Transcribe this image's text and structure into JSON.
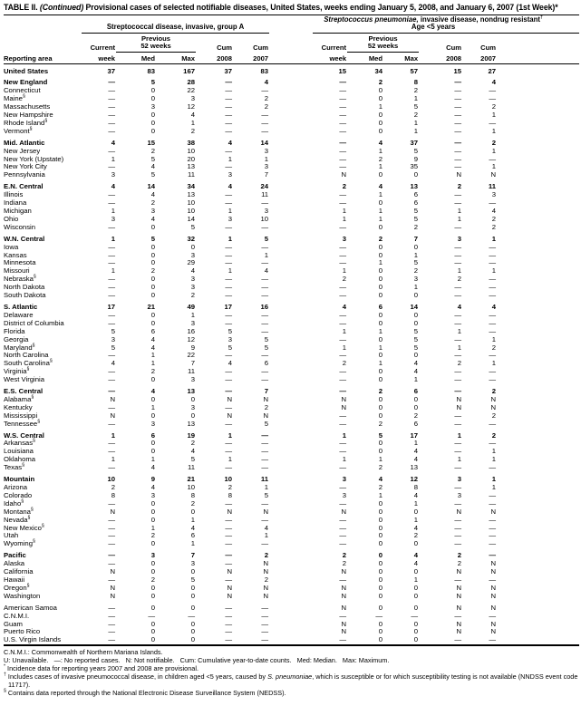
{
  "title": {
    "label": "TABLE II.",
    "continued": "(Continued)",
    "text": "Provisional cases of selected notifiable diseases, United States, weeks ending January 5, 2008, and January 6, 2007 (1st Week)*"
  },
  "header": {
    "reporting_area": "Reporting area",
    "group_a": "Streptococcal disease, invasive, group A",
    "group_b_italic": "Streptococcus pneumoniae,",
    "group_b_rest": " invasive disease, nondrug resistant",
    "group_b_mark": "†",
    "group_b_line2": "Age <5 years",
    "sub": {
      "current": "Current",
      "week": "week",
      "previous": "Previous",
      "weeks52": "52 weeks",
      "med": "Med",
      "max": "Max",
      "cum": "Cum",
      "y2008": "2008",
      "y2007": "2007"
    }
  },
  "table": {
    "rows": [
      {
        "a": "United States",
        "b": true,
        "s": true,
        "v": [
          "37",
          "83",
          "167",
          "37",
          "83",
          "15",
          "34",
          "57",
          "15",
          "27"
        ]
      },
      {
        "a": "New England",
        "b": true,
        "s": true,
        "v": [
          "—",
          "5",
          "28",
          "—",
          "4",
          "—",
          "2",
          "8",
          "—",
          "4"
        ]
      },
      {
        "a": "Connecticut",
        "v": [
          "—",
          "0",
          "22",
          "—",
          "—",
          "—",
          "0",
          "2",
          "—",
          "—"
        ]
      },
      {
        "a": "Maine",
        "m": "§",
        "v": [
          "—",
          "0",
          "3",
          "—",
          "2",
          "—",
          "0",
          "1",
          "—",
          "—"
        ]
      },
      {
        "a": "Massachusetts",
        "v": [
          "—",
          "3",
          "12",
          "—",
          "2",
          "—",
          "1",
          "5",
          "—",
          "2"
        ]
      },
      {
        "a": "New Hampshire",
        "v": [
          "—",
          "0",
          "4",
          "—",
          "—",
          "—",
          "0",
          "2",
          "—",
          "1"
        ]
      },
      {
        "a": "Rhode Island",
        "m": "§",
        "v": [
          "—",
          "0",
          "1",
          "—",
          "—",
          "—",
          "0",
          "1",
          "—",
          "—"
        ]
      },
      {
        "a": "Vermont",
        "m": "§",
        "v": [
          "—",
          "0",
          "2",
          "—",
          "—",
          "—",
          "0",
          "1",
          "—",
          "1"
        ]
      },
      {
        "a": "Mid. Atlantic",
        "b": true,
        "s": true,
        "v": [
          "4",
          "15",
          "38",
          "4",
          "14",
          "—",
          "4",
          "37",
          "—",
          "2"
        ]
      },
      {
        "a": "New Jersey",
        "v": [
          "—",
          "2",
          "10",
          "—",
          "3",
          "—",
          "1",
          "5",
          "—",
          "1"
        ]
      },
      {
        "a": "New York (Upstate)",
        "v": [
          "1",
          "5",
          "20",
          "1",
          "1",
          "—",
          "2",
          "9",
          "—",
          "—"
        ]
      },
      {
        "a": "New York City",
        "v": [
          "—",
          "4",
          "13",
          "—",
          "3",
          "—",
          "1",
          "35",
          "—",
          "1"
        ]
      },
      {
        "a": "Pennsylvania",
        "v": [
          "3",
          "5",
          "11",
          "3",
          "7",
          "N",
          "0",
          "0",
          "N",
          "N"
        ]
      },
      {
        "a": "E.N. Central",
        "b": true,
        "s": true,
        "v": [
          "4",
          "14",
          "34",
          "4",
          "24",
          "2",
          "4",
          "13",
          "2",
          "11"
        ]
      },
      {
        "a": "Illinois",
        "v": [
          "—",
          "4",
          "13",
          "—",
          "11",
          "—",
          "1",
          "6",
          "—",
          "3"
        ]
      },
      {
        "a": "Indiana",
        "v": [
          "—",
          "2",
          "10",
          "—",
          "—",
          "—",
          "0",
          "6",
          "—",
          "—"
        ]
      },
      {
        "a": "Michigan",
        "v": [
          "1",
          "3",
          "10",
          "1",
          "3",
          "1",
          "1",
          "5",
          "1",
          "4"
        ]
      },
      {
        "a": "Ohio",
        "v": [
          "3",
          "4",
          "14",
          "3",
          "10",
          "1",
          "1",
          "5",
          "1",
          "2"
        ]
      },
      {
        "a": "Wisconsin",
        "v": [
          "—",
          "0",
          "5",
          "—",
          "—",
          "—",
          "0",
          "2",
          "—",
          "2"
        ]
      },
      {
        "a": "W.N. Central",
        "b": true,
        "s": true,
        "v": [
          "1",
          "5",
          "32",
          "1",
          "5",
          "3",
          "2",
          "7",
          "3",
          "1"
        ]
      },
      {
        "a": "Iowa",
        "v": [
          "—",
          "0",
          "0",
          "—",
          "—",
          "—",
          "0",
          "0",
          "—",
          "—"
        ]
      },
      {
        "a": "Kansas",
        "v": [
          "—",
          "0",
          "3",
          "—",
          "1",
          "—",
          "0",
          "1",
          "—",
          "—"
        ]
      },
      {
        "a": "Minnesota",
        "v": [
          "—",
          "0",
          "29",
          "—",
          "—",
          "—",
          "1",
          "5",
          "—",
          "—"
        ]
      },
      {
        "a": "Missouri",
        "v": [
          "1",
          "2",
          "4",
          "1",
          "4",
          "1",
          "0",
          "2",
          "1",
          "1"
        ]
      },
      {
        "a": "Nebraska",
        "m": "§",
        "v": [
          "—",
          "0",
          "3",
          "—",
          "—",
          "2",
          "0",
          "3",
          "2",
          "—"
        ]
      },
      {
        "a": "North Dakota",
        "v": [
          "—",
          "0",
          "3",
          "—",
          "—",
          "—",
          "0",
          "1",
          "—",
          "—"
        ]
      },
      {
        "a": "South Dakota",
        "v": [
          "—",
          "0",
          "2",
          "—",
          "—",
          "—",
          "0",
          "0",
          "—",
          "—"
        ]
      },
      {
        "a": "S. Atlantic",
        "b": true,
        "s": true,
        "v": [
          "17",
          "21",
          "49",
          "17",
          "16",
          "4",
          "6",
          "14",
          "4",
          "4"
        ]
      },
      {
        "a": "Delaware",
        "v": [
          "—",
          "0",
          "1",
          "—",
          "—",
          "—",
          "0",
          "0",
          "—",
          "—"
        ]
      },
      {
        "a": "District of Columbia",
        "v": [
          "—",
          "0",
          "3",
          "—",
          "—",
          "—",
          "0",
          "0",
          "—",
          "—"
        ]
      },
      {
        "a": "Florida",
        "v": [
          "5",
          "6",
          "16",
          "5",
          "—",
          "1",
          "1",
          "5",
          "1",
          "—"
        ]
      },
      {
        "a": "Georgia",
        "v": [
          "3",
          "4",
          "12",
          "3",
          "5",
          "—",
          "0",
          "5",
          "—",
          "1"
        ]
      },
      {
        "a": "Maryland",
        "m": "§",
        "v": [
          "5",
          "4",
          "9",
          "5",
          "5",
          "1",
          "1",
          "5",
          "1",
          "2"
        ]
      },
      {
        "a": "North Carolina",
        "v": [
          "—",
          "1",
          "22",
          "—",
          "—",
          "—",
          "0",
          "0",
          "—",
          "—"
        ]
      },
      {
        "a": "South Carolina",
        "m": "§",
        "v": [
          "4",
          "1",
          "7",
          "4",
          "6",
          "2",
          "1",
          "4",
          "2",
          "1"
        ]
      },
      {
        "a": "Virginia",
        "m": "§",
        "v": [
          "—",
          "2",
          "11",
          "—",
          "—",
          "—",
          "0",
          "4",
          "—",
          "—"
        ]
      },
      {
        "a": "West Virginia",
        "v": [
          "—",
          "0",
          "3",
          "—",
          "—",
          "—",
          "0",
          "1",
          "—",
          "—"
        ]
      },
      {
        "a": "E.S. Central",
        "b": true,
        "s": true,
        "v": [
          "—",
          "4",
          "13",
          "—",
          "7",
          "—",
          "2",
          "6",
          "—",
          "2"
        ]
      },
      {
        "a": "Alabama",
        "m": "§",
        "v": [
          "N",
          "0",
          "0",
          "N",
          "N",
          "N",
          "0",
          "0",
          "N",
          "N"
        ]
      },
      {
        "a": "Kentucky",
        "v": [
          "—",
          "1",
          "3",
          "—",
          "2",
          "N",
          "0",
          "0",
          "N",
          "N"
        ]
      },
      {
        "a": "Mississippi",
        "v": [
          "N",
          "0",
          "0",
          "N",
          "N",
          "—",
          "0",
          "2",
          "—",
          "2"
        ]
      },
      {
        "a": "Tennessee",
        "m": "§",
        "v": [
          "—",
          "3",
          "13",
          "—",
          "5",
          "—",
          "2",
          "6",
          "—",
          "—"
        ]
      },
      {
        "a": "W.S. Central",
        "b": true,
        "s": true,
        "v": [
          "1",
          "6",
          "19",
          "1",
          "—",
          "1",
          "5",
          "17",
          "1",
          "2"
        ]
      },
      {
        "a": "Arkansas",
        "m": "§",
        "v": [
          "—",
          "0",
          "2",
          "—",
          "—",
          "—",
          "0",
          "1",
          "—",
          "—"
        ]
      },
      {
        "a": "Louisiana",
        "v": [
          "—",
          "0",
          "4",
          "—",
          "—",
          "—",
          "0",
          "4",
          "—",
          "1"
        ]
      },
      {
        "a": "Oklahoma",
        "v": [
          "1",
          "1",
          "5",
          "1",
          "—",
          "1",
          "1",
          "4",
          "1",
          "1"
        ]
      },
      {
        "a": "Texas",
        "m": "§",
        "v": [
          "—",
          "4",
          "11",
          "—",
          "—",
          "—",
          "2",
          "13",
          "—",
          "—"
        ]
      },
      {
        "a": "Mountain",
        "b": true,
        "s": true,
        "v": [
          "10",
          "9",
          "21",
          "10",
          "11",
          "3",
          "4",
          "12",
          "3",
          "1"
        ]
      },
      {
        "a": "Arizona",
        "v": [
          "2",
          "4",
          "10",
          "2",
          "1",
          "—",
          "2",
          "8",
          "—",
          "1"
        ]
      },
      {
        "a": "Colorado",
        "v": [
          "8",
          "3",
          "8",
          "8",
          "5",
          "3",
          "1",
          "4",
          "3",
          "—"
        ]
      },
      {
        "a": "Idaho",
        "m": "§",
        "v": [
          "—",
          "0",
          "2",
          "—",
          "—",
          "—",
          "0",
          "1",
          "—",
          "—"
        ]
      },
      {
        "a": "Montana",
        "m": "§",
        "v": [
          "N",
          "0",
          "0",
          "N",
          "N",
          "N",
          "0",
          "0",
          "N",
          "N"
        ]
      },
      {
        "a": "Nevada",
        "m": "§",
        "v": [
          "—",
          "0",
          "1",
          "—",
          "—",
          "—",
          "0",
          "1",
          "—",
          "—"
        ]
      },
      {
        "a": "New Mexico",
        "m": "§",
        "v": [
          "—",
          "1",
          "4",
          "—",
          "4",
          "—",
          "0",
          "4",
          "—",
          "—"
        ]
      },
      {
        "a": "Utah",
        "v": [
          "—",
          "2",
          "6",
          "—",
          "1",
          "—",
          "0",
          "2",
          "—",
          "—"
        ]
      },
      {
        "a": "Wyoming",
        "m": "§",
        "v": [
          "—",
          "0",
          "1",
          "—",
          "—",
          "—",
          "0",
          "0",
          "—",
          "—"
        ]
      },
      {
        "a": "Pacific",
        "b": true,
        "s": true,
        "v": [
          "—",
          "3",
          "7",
          "—",
          "2",
          "2",
          "0",
          "4",
          "2",
          "—"
        ]
      },
      {
        "a": "Alaska",
        "v": [
          "—",
          "0",
          "3",
          "—",
          "N",
          "2",
          "0",
          "4",
          "2",
          "N"
        ]
      },
      {
        "a": "California",
        "v": [
          "N",
          "0",
          "0",
          "N",
          "N",
          "N",
          "0",
          "0",
          "N",
          "N"
        ]
      },
      {
        "a": "Hawaii",
        "v": [
          "—",
          "2",
          "5",
          "—",
          "2",
          "—",
          "0",
          "1",
          "—",
          "—"
        ]
      },
      {
        "a": "Oregon",
        "m": "§",
        "v": [
          "N",
          "0",
          "0",
          "N",
          "N",
          "N",
          "0",
          "0",
          "N",
          "N"
        ]
      },
      {
        "a": "Washington",
        "v": [
          "N",
          "0",
          "0",
          "N",
          "N",
          "N",
          "0",
          "0",
          "N",
          "N"
        ]
      },
      {
        "a": "American Samoa",
        "s": true,
        "v": [
          "—",
          "0",
          "0",
          "—",
          "—",
          "N",
          "0",
          "0",
          "N",
          "N"
        ]
      },
      {
        "a": "C.N.M.I.",
        "v": [
          "—",
          "—",
          "—",
          "—",
          "—",
          "—",
          "—",
          "—",
          "—",
          "—"
        ]
      },
      {
        "a": "Guam",
        "v": [
          "—",
          "0",
          "0",
          "—",
          "—",
          "N",
          "0",
          "0",
          "N",
          "N"
        ]
      },
      {
        "a": "Puerto Rico",
        "v": [
          "—",
          "0",
          "0",
          "—",
          "—",
          "N",
          "0",
          "0",
          "N",
          "N"
        ]
      },
      {
        "a": "U.S. Virgin Islands",
        "v": [
          "—",
          "0",
          "0",
          "—",
          "—",
          "—",
          "0",
          "0",
          "—",
          "—"
        ]
      }
    ]
  },
  "footnotes": {
    "cnmi": "C.N.M.I.: Commonwealth of Northern Mariana Islands.",
    "legend": "U: Unavailable.   —: No reported cases.   N: Not notifiable.   Cum: Cumulative year-to-date counts.   Med: Median.   Max: Maximum.",
    "star_mark": "*",
    "star": " Incidence data for reporting years 2007 and 2008 are provisional.",
    "dagger_mark": "†",
    "dagger_pre": " Includes cases of invasive pneumococcal disease, in children aged <5 years, caused by ",
    "dagger_italic": "S. pneumoniae",
    "dagger_post": ", which is susceptible or for which susceptibility testing is not available (NNDSS event code 11717).",
    "section_mark": "§",
    "section": " Contains data reported through the National Electronic Disease Surveillance System (NEDSS)."
  }
}
